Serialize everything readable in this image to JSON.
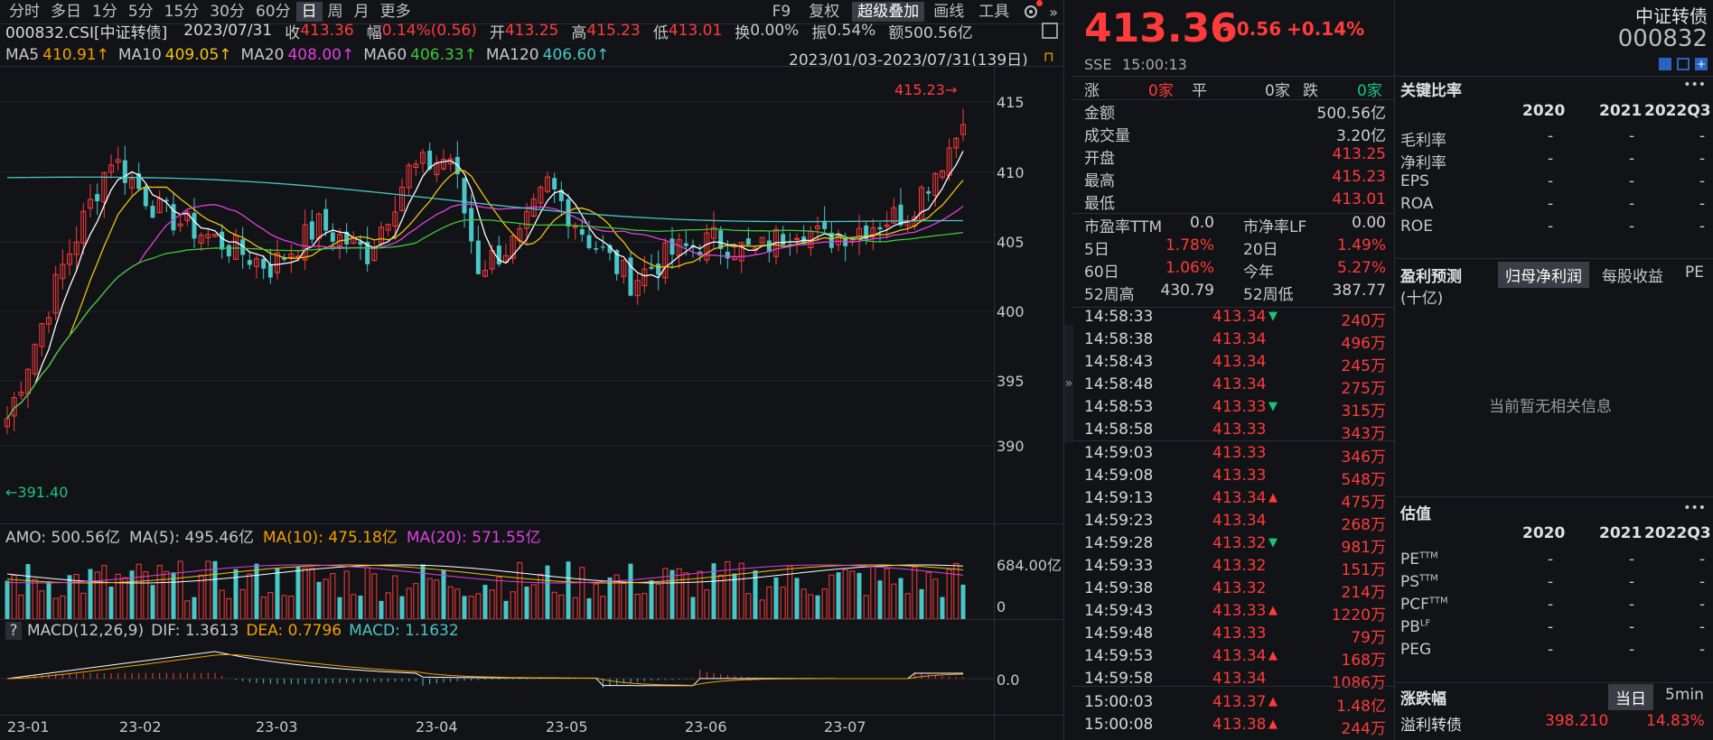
{
  "toolbar": {
    "periods": [
      "分时",
      "多日",
      "1分",
      "5分",
      "15分",
      "30分",
      "60分",
      "日",
      "周",
      "月",
      "更多"
    ],
    "right_buttons": [
      "F9",
      "复权",
      "超级叠加",
      "画线",
      "工具"
    ],
    "active_period": "日"
  },
  "info_line": {
    "code": "000832.CSI[中证转债]",
    "date": "2023/07/31",
    "close_label": "收",
    "close": "413.36",
    "chg_label": "幅",
    "chg": "0.14%(0.56)",
    "open_label": "开",
    "open": "413.25",
    "high_label": "高",
    "high": "415.23",
    "low_label": "低",
    "low": "413.01",
    "turn_label": "换",
    "turn": "0.00%",
    "amp_label": "振",
    "amp": "0.54%",
    "amt_label": "额",
    "amt": "500.56亿"
  },
  "ma_line": {
    "ma5": "MA5",
    "ma5_val": "410.91↑",
    "ma10": "MA10",
    "ma10_val": "409.05↑",
    "ma20": "MA20",
    "ma20_val": "408.00↑",
    "ma60": "MA60",
    "ma60_val": "406.33↑",
    "ma120": "MA120",
    "ma120_val": "406.60↑",
    "range": "2023/01/03-2023/07/31(139日)"
  },
  "price_axis": [
    "415",
    "410",
    "405",
    "400",
    "395",
    "390"
  ],
  "hi_mark": "415.23",
  "lo_mark": "391.40",
  "amo_line": {
    "amo": "AMO: 500.56亿",
    "ma5": "MA(5): 495.46亿",
    "ma10": "MA(10): 475.18亿",
    "ma20": "MA(20): 571.55亿"
  },
  "vol_axis": [
    "684.00亿",
    "0"
  ],
  "macd_line": {
    "q": "?",
    "name": "MACD(12,26,9)",
    "dif": "DIF: 1.3613",
    "dea": "DEA: 0.7796",
    "macd": "MACD: 1.1632"
  },
  "macd_axis": "0.0",
  "months": [
    "23-01",
    "23-02",
    "23-03",
    "23-04",
    "23-05",
    "23-06",
    "23-07"
  ],
  "quote": {
    "price": "413.36",
    "chg": "+0.56",
    "pct": "+0.14%",
    "name": "中证转债",
    "code": "000832",
    "exch": "SSE",
    "time": "15:00:13"
  },
  "breadth": {
    "up_label": "涨",
    "up": "0家",
    "flat_label": "平",
    "flat": "0家",
    "down_label": "跌",
    "down": "0家"
  },
  "stats": [
    {
      "label": "金额",
      "value": "500.56亿",
      "color": "#d0d0d0"
    },
    {
      "label": "成交量",
      "value": "3.20亿",
      "color": "#d0d0d0"
    },
    {
      "label": "开盘",
      "value": "413.25",
      "color": "#ff3b3b"
    },
    {
      "label": "最高",
      "value": "415.23",
      "color": "#ff3b3b"
    },
    {
      "label": "最低",
      "value": "413.01",
      "color": "#ff3b3b"
    }
  ],
  "stats2": [
    {
      "l1": "市盈率TTM",
      "v1": "0.0",
      "l2": "市净率LF",
      "v2": "0.00",
      "c": "#d0d0d0"
    },
    {
      "l1": "5日",
      "v1": "1.78%",
      "l2": "20日",
      "v2": "1.49%",
      "c": "#ff3b3b"
    },
    {
      "l1": "60日",
      "v1": "1.06%",
      "l2": "今年",
      "v2": "5.27%",
      "c": "#ff3b3b"
    },
    {
      "l1": "52周高",
      "v1": "430.79",
      "l2": "52周低",
      "v2": "387.77",
      "c": "#d0d0d0"
    }
  ],
  "ticks": [
    {
      "t": "14:58:33",
      "p": "413.34",
      "d": "dn",
      "v": "240万"
    },
    {
      "t": "14:58:38",
      "p": "413.34",
      "d": "",
      "v": "496万"
    },
    {
      "t": "14:58:43",
      "p": "413.34",
      "d": "",
      "v": "245万"
    },
    {
      "t": "14:58:48",
      "p": "413.34",
      "d": "",
      "v": "275万"
    },
    {
      "t": "14:58:53",
      "p": "413.33",
      "d": "dn",
      "v": "315万"
    },
    {
      "t": "14:58:58",
      "p": "413.33",
      "d": "",
      "v": "343万"
    },
    {
      "t": "14:59:03",
      "p": "413.33",
      "d": "",
      "v": "346万"
    },
    {
      "t": "14:59:08",
      "p": "413.33",
      "d": "",
      "v": "548万"
    },
    {
      "t": "14:59:13",
      "p": "413.34",
      "d": "up",
      "v": "475万"
    },
    {
      "t": "14:59:23",
      "p": "413.34",
      "d": "",
      "v": "268万"
    },
    {
      "t": "14:59:28",
      "p": "413.32",
      "d": "dn",
      "v": "981万"
    },
    {
      "t": "14:59:33",
      "p": "413.32",
      "d": "",
      "v": "151万"
    },
    {
      "t": "14:59:38",
      "p": "413.32",
      "d": "",
      "v": "214万"
    },
    {
      "t": "14:59:43",
      "p": "413.33",
      "d": "up",
      "v": "1220万"
    },
    {
      "t": "14:59:48",
      "p": "413.33",
      "d": "",
      "v": "79万"
    },
    {
      "t": "14:59:53",
      "p": "413.34",
      "d": "up",
      "v": "168万"
    },
    {
      "t": "14:59:58",
      "p": "413.34",
      "d": "",
      "v": "1086万"
    },
    {
      "t": "15:00:03",
      "p": "413.37",
      "d": "up",
      "v": "1.48亿"
    },
    {
      "t": "15:00:08",
      "p": "413.38",
      "d": "up",
      "v": "244万"
    }
  ],
  "ratios": {
    "title": "关键比率",
    "more": "•••",
    "years": [
      "2020",
      "2021",
      "2022Q3"
    ],
    "rows": [
      {
        "l": "毛利率",
        "v": [
          "-",
          "-",
          "-"
        ]
      },
      {
        "l": "净利率",
        "v": [
          "-",
          "-",
          "-"
        ]
      },
      {
        "l": "EPS",
        "v": [
          "-",
          "-",
          "-"
        ]
      },
      {
        "l": "ROA",
        "v": [
          "-",
          "-",
          "-"
        ]
      },
      {
        "l": "ROE",
        "v": [
          "-",
          "-",
          "-"
        ]
      }
    ]
  },
  "forecast": {
    "title": "盈利预测",
    "tabs": [
      "归母净利润",
      "每股收益",
      "PE"
    ],
    "unit": "(十亿)",
    "empty": "当前暂无相关信息"
  },
  "valuation": {
    "title": "估值",
    "more": "•••",
    "years": [
      "2020",
      "2021",
      "2022Q3"
    ],
    "rows": [
      {
        "l": "PE",
        "s": "TTM",
        "v": [
          "-",
          "-",
          "-"
        ]
      },
      {
        "l": "PS",
        "s": "TTM",
        "v": [
          "-",
          "-",
          "-"
        ]
      },
      {
        "l": "PCF",
        "s": "TTM",
        "v": [
          "-",
          "-",
          "-"
        ]
      },
      {
        "l": "PB",
        "s": "LF",
        "v": [
          "-",
          "-",
          "-"
        ]
      },
      {
        "l": "PEG",
        "s": "",
        "v": [
          "-",
          "-",
          "-"
        ]
      }
    ]
  },
  "movers": {
    "title": "涨跌幅",
    "tabs": [
      "当日",
      "5min"
    ],
    "row_name": "溢利转债",
    "row_price": "398.210",
    "row_pct": "14.83%"
  },
  "colors": {
    "up": "#ff3b3b",
    "down": "#19c37d",
    "ma5": "#ffffff",
    "ma10": "#f0c40c",
    "ma20": "#e040e0",
    "ma60": "#3cc83c",
    "ma120": "#49c6c6",
    "candle_down": "#49c6c6"
  }
}
